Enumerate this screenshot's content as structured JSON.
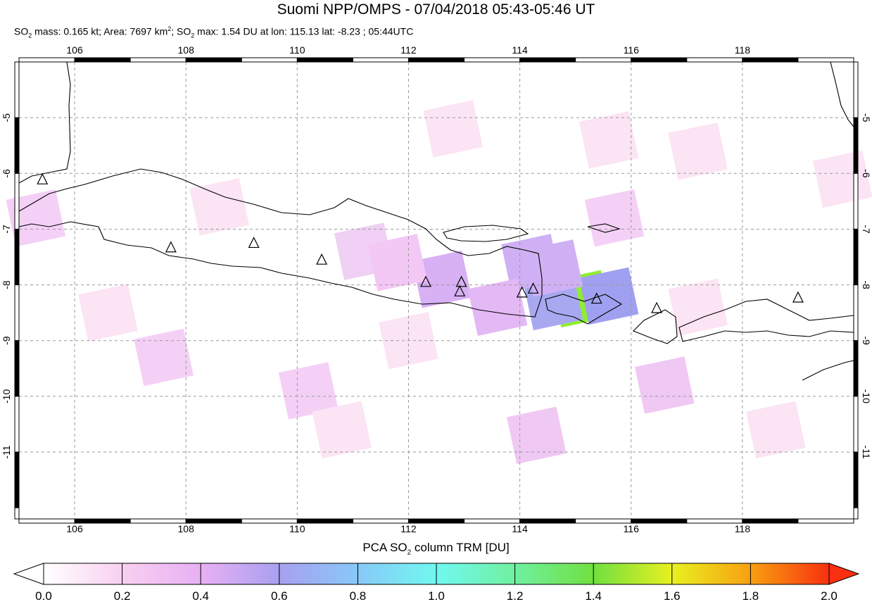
{
  "title": "Suomi NPP/OMPS - 07/04/2018 05:43-05:46 UT",
  "subtitle": {
    "so2_mass": "0.165 kt",
    "area": "7697 km",
    "so2_max": "1.54 DU at lon: 115.13 lat: -8.23 ; 05:44UTC",
    "text_parts": [
      "SO",
      "2",
      " mass: 0.165 kt; Area: 7697 km",
      "2",
      "; SO",
      "2",
      " max: 1.54 DU at lon: 115.13 lat: -8.23 ; 05:44UTC"
    ]
  },
  "map": {
    "lon_range": [
      105.0,
      120.0
    ],
    "lat_range": [
      -12.2,
      -4.0
    ],
    "lon_ticks": [
      "106",
      "108",
      "110",
      "112",
      "114",
      "116",
      "118"
    ],
    "lat_ticks": [
      "-5",
      "-6",
      "-7",
      "-8",
      "-9",
      "-10",
      "-11"
    ],
    "grid": true,
    "volcanoes": [
      [
        105.42,
        -6.1
      ],
      [
        107.73,
        -7.32
      ],
      [
        109.22,
        -7.24
      ],
      [
        110.44,
        -7.54
      ],
      [
        112.31,
        -7.94
      ],
      [
        112.95,
        -7.94
      ],
      [
        112.92,
        -8.11
      ],
      [
        114.04,
        -8.13
      ],
      [
        114.24,
        -8.06
      ],
      [
        115.38,
        -8.24
      ],
      [
        116.46,
        -8.41
      ],
      [
        119.0,
        -8.22
      ]
    ],
    "so2_pixels": [
      {
        "lon": 115.1,
        "lat": -8.25,
        "value": 1.54,
        "color": "#90ee30"
      },
      {
        "lon": 115.6,
        "lat": -8.2,
        "value": 0.65,
        "color": "#a0a0f0"
      },
      {
        "lon": 114.6,
        "lat": -8.3,
        "value": 0.6,
        "color": "#a8a8f0"
      },
      {
        "lon": 114.2,
        "lat": -7.6,
        "value": 0.5,
        "color": "#d0b0f4"
      },
      {
        "lon": 114.6,
        "lat": -7.7,
        "value": 0.5,
        "color": "#d0b0f4"
      },
      {
        "lon": 112.6,
        "lat": -7.9,
        "value": 0.5,
        "color": "#d8b0f4"
      },
      {
        "lon": 113.6,
        "lat": -8.4,
        "value": 0.4,
        "color": "#e4b8f4"
      },
      {
        "lon": 111.2,
        "lat": -7.4,
        "value": 0.3,
        "color": "#f0d0f4"
      },
      {
        "lon": 111.8,
        "lat": -7.6,
        "value": 0.3,
        "color": "#f4c8f4"
      },
      {
        "lon": 107.6,
        "lat": -9.3,
        "value": 0.3,
        "color": "#f4d0f6"
      },
      {
        "lon": 110.2,
        "lat": -9.9,
        "value": 0.3,
        "color": "#f4d0f6"
      },
      {
        "lon": 114.3,
        "lat": -10.7,
        "value": 0.3,
        "color": "#f0c8f4"
      },
      {
        "lon": 116.6,
        "lat": -9.8,
        "value": 0.3,
        "color": "#f0c8f4"
      },
      {
        "lon": 115.7,
        "lat": -6.8,
        "value": 0.3,
        "color": "#f4d0f6"
      },
      {
        "lon": 105.3,
        "lat": -6.8,
        "value": 0.3,
        "color": "#f4d0f6"
      },
      {
        "lon": 112.8,
        "lat": -5.2,
        "value": 0.15,
        "color": "#fbe4f4"
      },
      {
        "lon": 115.6,
        "lat": -5.4,
        "value": 0.15,
        "color": "#fbe4f4"
      },
      {
        "lon": 117.2,
        "lat": -5.6,
        "value": 0.15,
        "color": "#fbe4f4"
      },
      {
        "lon": 110.8,
        "lat": -10.6,
        "value": 0.15,
        "color": "#fbe4f4"
      },
      {
        "lon": 118.6,
        "lat": -10.6,
        "value": 0.15,
        "color": "#fbe4f4"
      },
      {
        "lon": 106.6,
        "lat": -8.5,
        "value": 0.15,
        "color": "#fbe4f4"
      },
      {
        "lon": 108.6,
        "lat": -6.6,
        "value": 0.15,
        "color": "#fbe4f4"
      },
      {
        "lon": 119.8,
        "lat": -6.1,
        "value": 0.15,
        "color": "#fbe4f4"
      },
      {
        "lon": 112.0,
        "lat": -9.0,
        "value": 0.15,
        "color": "#fbe4f4"
      },
      {
        "lon": 117.2,
        "lat": -8.4,
        "value": 0.15,
        "color": "#fbe4f4"
      }
    ]
  },
  "colorbar": {
    "title": "PCA SO2 column TRM [DU]",
    "ticks": [
      "0.0",
      "0.2",
      "0.4",
      "0.6",
      "0.8",
      "1.0",
      "1.2",
      "1.4",
      "1.6",
      "1.8",
      "2.0"
    ],
    "colors": [
      "#ffffff",
      "#f8d0f0",
      "#e8b0f4",
      "#a8a0f0",
      "#88c8f8",
      "#70f8f0",
      "#70f0a0",
      "#70e040",
      "#e8f020",
      "#f8a010",
      "#f83010"
    ]
  }
}
